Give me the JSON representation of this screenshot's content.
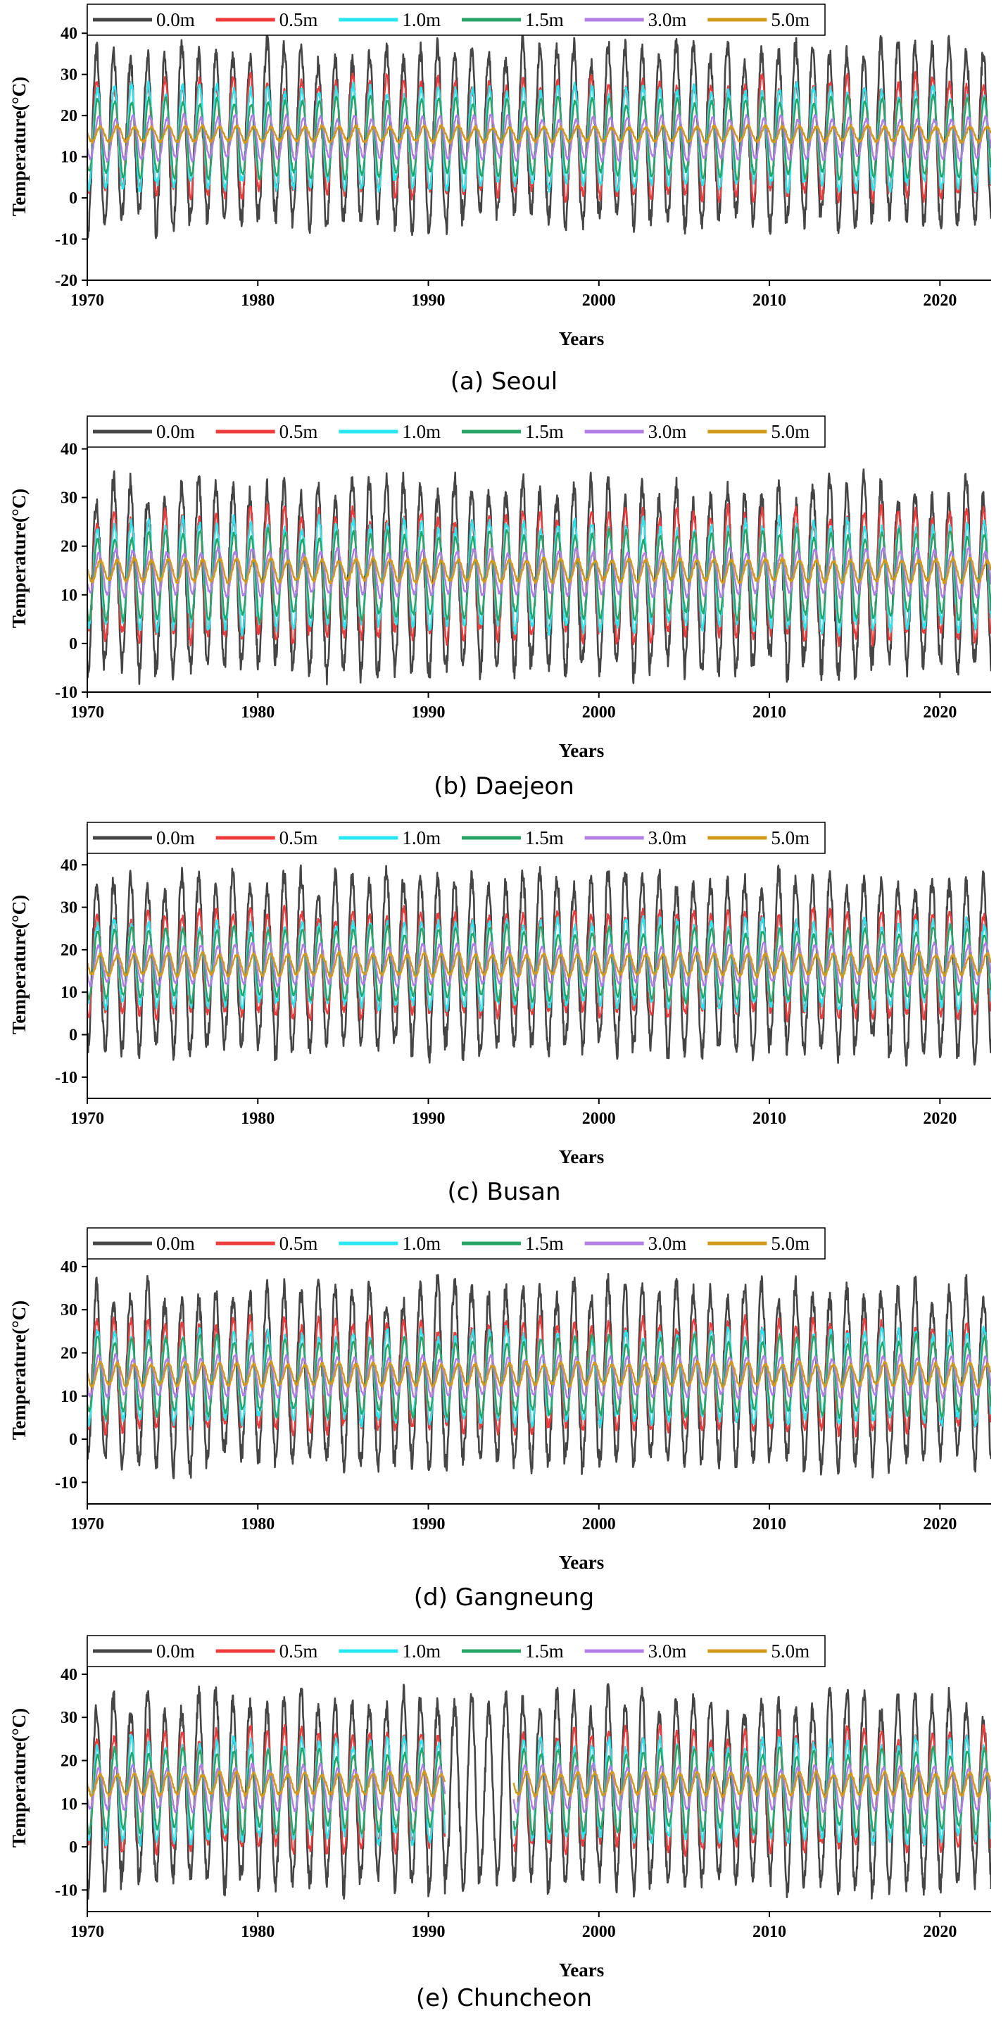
{
  "figure": {
    "captions": [
      "(a) Seoul",
      "(b) Daejeon",
      "(c) Busan",
      "(d) Gangneung",
      "(e) Chuncheon"
    ]
  },
  "colors": {
    "0.0m": "#454545",
    "0.5m": "#ef3b3b",
    "1.0m": "#29e7f0",
    "1.5m": "#27a566",
    "3.0m": "#b27ee6",
    "5.0m": "#d19a1a"
  },
  "chart_data": [
    {
      "type": "line",
      "panel": "(a) Seoul",
      "xlabel": "Years",
      "ylabel": "Temperature(°C)",
      "xlim": [
        1970,
        2023
      ],
      "ylim": [
        -20,
        45
      ],
      "xticks": [
        1970,
        1980,
        1990,
        2000,
        2010,
        2020
      ],
      "yticks": [
        -20,
        -10,
        0,
        10,
        20,
        30,
        40
      ],
      "legend_position": "top",
      "series": [
        {
          "name": "0.0m",
          "mean": 15.0,
          "amplitude": 20.5,
          "annual_max_range": [
            30,
            39
          ],
          "annual_min_range": [
            -13,
            -4
          ]
        },
        {
          "name": "0.5m",
          "mean": 14.5,
          "amplitude": 13.5,
          "annual_max_range": [
            27,
            33
          ],
          "annual_min_range": [
            -2,
            3
          ]
        },
        {
          "name": "1.0m",
          "mean": 14.5,
          "amplitude": 11.5,
          "annual_max_range": [
            24,
            28
          ],
          "annual_min_range": [
            1,
            4
          ]
        },
        {
          "name": "1.5m",
          "mean": 14.5,
          "amplitude": 9.0,
          "annual_max_range": [
            22,
            25
          ],
          "annual_min_range": [
            4,
            7
          ]
        },
        {
          "name": "3.0m",
          "mean": 14.5,
          "amplitude": 5.0,
          "annual_max_range": [
            18,
            21
          ],
          "annual_min_range": [
            9,
            11
          ]
        },
        {
          "name": "5.0m",
          "mean": 15.5,
          "amplitude": 1.8,
          "annual_max_range": [
            16,
            18
          ],
          "annual_min_range": [
            13,
            15
          ]
        }
      ]
    },
    {
      "type": "line",
      "panel": "(b) Daejeon",
      "xlabel": "Years",
      "ylabel": "Temperature(°C)",
      "xlim": [
        1970,
        2023
      ],
      "ylim": [
        -10,
        45
      ],
      "xticks": [
        1970,
        1980,
        1990,
        2000,
        2010,
        2020
      ],
      "yticks": [
        -10,
        0,
        10,
        20,
        30,
        40
      ],
      "legend_position": "top",
      "series": [
        {
          "name": "0.0m",
          "mean": 13.5,
          "amplitude": 18.0,
          "annual_max_range": [
            28,
            42
          ],
          "annual_min_range": [
            -8,
            -2
          ]
        },
        {
          "name": "0.5m",
          "mean": 14.0,
          "amplitude": 12.5,
          "annual_max_range": [
            25,
            31
          ],
          "annual_min_range": [
            0,
            4
          ]
        },
        {
          "name": "1.0m",
          "mean": 14.0,
          "amplitude": 10.5,
          "annual_max_range": [
            23,
            27
          ],
          "annual_min_range": [
            2,
            5
          ]
        },
        {
          "name": "1.5m",
          "mean": 14.0,
          "amplitude": 8.5,
          "annual_max_range": [
            21,
            24
          ],
          "annual_min_range": [
            5,
            8
          ]
        },
        {
          "name": "3.0m",
          "mean": 14.5,
          "amplitude": 4.5,
          "annual_max_range": [
            18,
            20
          ],
          "annual_min_range": [
            9,
            11
          ]
        },
        {
          "name": "5.0m",
          "mean": 15.0,
          "amplitude": 2.2,
          "annual_max_range": [
            16,
            18
          ],
          "annual_min_range": [
            12,
            14
          ]
        }
      ]
    },
    {
      "type": "line",
      "panel": "(c) Busan",
      "xlabel": "Years",
      "ylabel": "Temperature(°C)",
      "xlim": [
        1970,
        2023
      ],
      "ylim": [
        -15,
        48
      ],
      "xticks": [
        1970,
        1980,
        1990,
        2000,
        2010,
        2020
      ],
      "yticks": [
        -10,
        0,
        10,
        20,
        30,
        40
      ],
      "legend_position": "top",
      "series": [
        {
          "name": "0.0m",
          "mean": 16.5,
          "amplitude": 19.5,
          "annual_max_range": [
            32,
            40
          ],
          "annual_min_range": [
            -7,
            0
          ]
        },
        {
          "name": "0.5m",
          "mean": 16.5,
          "amplitude": 11.5,
          "annual_max_range": [
            26,
            31
          ],
          "annual_min_range": [
            4,
            8
          ]
        },
        {
          "name": "1.0m",
          "mean": 16.5,
          "amplitude": 9.5,
          "annual_max_range": [
            24,
            28
          ],
          "annual_min_range": [
            7,
            10
          ]
        },
        {
          "name": "1.5m",
          "mean": 16.5,
          "amplitude": 8.0,
          "annual_max_range": [
            23,
            26
          ],
          "annual_min_range": [
            9,
            11
          ]
        },
        {
          "name": "3.0m",
          "mean": 16.5,
          "amplitude": 4.5,
          "annual_max_range": [
            20,
            22
          ],
          "annual_min_range": [
            12,
            14
          ]
        },
        {
          "name": "5.0m",
          "mean": 16.5,
          "amplitude": 2.5,
          "annual_max_range": [
            18,
            20
          ],
          "annual_min_range": [
            14,
            16
          ]
        }
      ]
    },
    {
      "type": "line",
      "panel": "(d) Gangneung",
      "xlabel": "Years",
      "ylabel": "Temperature(°C)",
      "xlim": [
        1970,
        2023
      ],
      "ylim": [
        -15,
        47
      ],
      "xticks": [
        1970,
        1980,
        1990,
        2000,
        2010,
        2020
      ],
      "yticks": [
        -10,
        0,
        10,
        20,
        30,
        40
      ],
      "legend_position": "top",
      "series": [
        {
          "name": "0.0m",
          "mean": 14.5,
          "amplitude": 19.5,
          "annual_max_range": [
            28,
            39
          ],
          "annual_min_range": [
            -9,
            -2
          ]
        },
        {
          "name": "0.5m",
          "mean": 14.5,
          "amplitude": 12.0,
          "annual_max_range": [
            25,
            31
          ],
          "annual_min_range": [
            1,
            4
          ]
        },
        {
          "name": "1.0m",
          "mean": 14.5,
          "amplitude": 10.0,
          "annual_max_range": [
            23,
            27
          ],
          "annual_min_range": [
            3,
            6
          ]
        },
        {
          "name": "1.5m",
          "mean": 14.5,
          "amplitude": 8.5,
          "annual_max_range": [
            21,
            25
          ],
          "annual_min_range": [
            5,
            8
          ]
        },
        {
          "name": "3.0m",
          "mean": 14.5,
          "amplitude": 4.5,
          "annual_max_range": [
            18,
            20
          ],
          "annual_min_range": [
            9,
            12
          ]
        },
        {
          "name": "5.0m",
          "mean": 15.0,
          "amplitude": 2.5,
          "annual_max_range": [
            16,
            18
          ],
          "annual_min_range": [
            12,
            14
          ]
        }
      ]
    },
    {
      "type": "line",
      "panel": "(e) Chuncheon",
      "xlabel": "Years",
      "ylabel": "Temperature(°C)",
      "xlim": [
        1970,
        2023
      ],
      "ylim": [
        -15,
        47
      ],
      "xticks": [
        1970,
        1980,
        1990,
        2000,
        2010,
        2020
      ],
      "yticks": [
        -10,
        0,
        10,
        20,
        30,
        40
      ],
      "legend_position": "top",
      "series": [
        {
          "name": "0.0m",
          "mean": 12.5,
          "amplitude": 21.0,
          "annual_max_range": [
            30,
            40
          ],
          "annual_min_range": [
            -13,
            -5
          ]
        },
        {
          "name": "0.5m",
          "mean": 13.0,
          "amplitude": 13.0,
          "annual_max_range": [
            25,
            31
          ],
          "annual_min_range": [
            -1,
            3
          ]
        },
        {
          "name": "1.0m",
          "mean": 13.0,
          "amplitude": 11.0,
          "annual_max_range": [
            23,
            27
          ],
          "annual_min_range": [
            1,
            5
          ]
        },
        {
          "name": "1.5m",
          "mean": 13.0,
          "amplitude": 9.0,
          "annual_max_range": [
            21,
            24
          ],
          "annual_min_range": [
            4,
            7
          ]
        },
        {
          "name": "3.0m",
          "mean": 13.5,
          "amplitude": 5.0,
          "annual_max_range": [
            18,
            20
          ],
          "annual_min_range": [
            8,
            11
          ]
        },
        {
          "name": "5.0m",
          "mean": 14.5,
          "amplitude": 2.5,
          "annual_max_range": [
            16,
            18
          ],
          "annual_min_range": [
            12,
            14
          ]
        }
      ],
      "gaps": {
        "1.0m": [
          [
            1991,
            1995
          ]
        ],
        "1.5m": [
          [
            1991,
            1995
          ]
        ],
        "3.0m": [
          [
            1991,
            1995
          ]
        ],
        "5.0m": [
          [
            1991,
            1995
          ]
        ],
        "0.5m": [
          [
            1991,
            1995
          ]
        ]
      }
    }
  ]
}
